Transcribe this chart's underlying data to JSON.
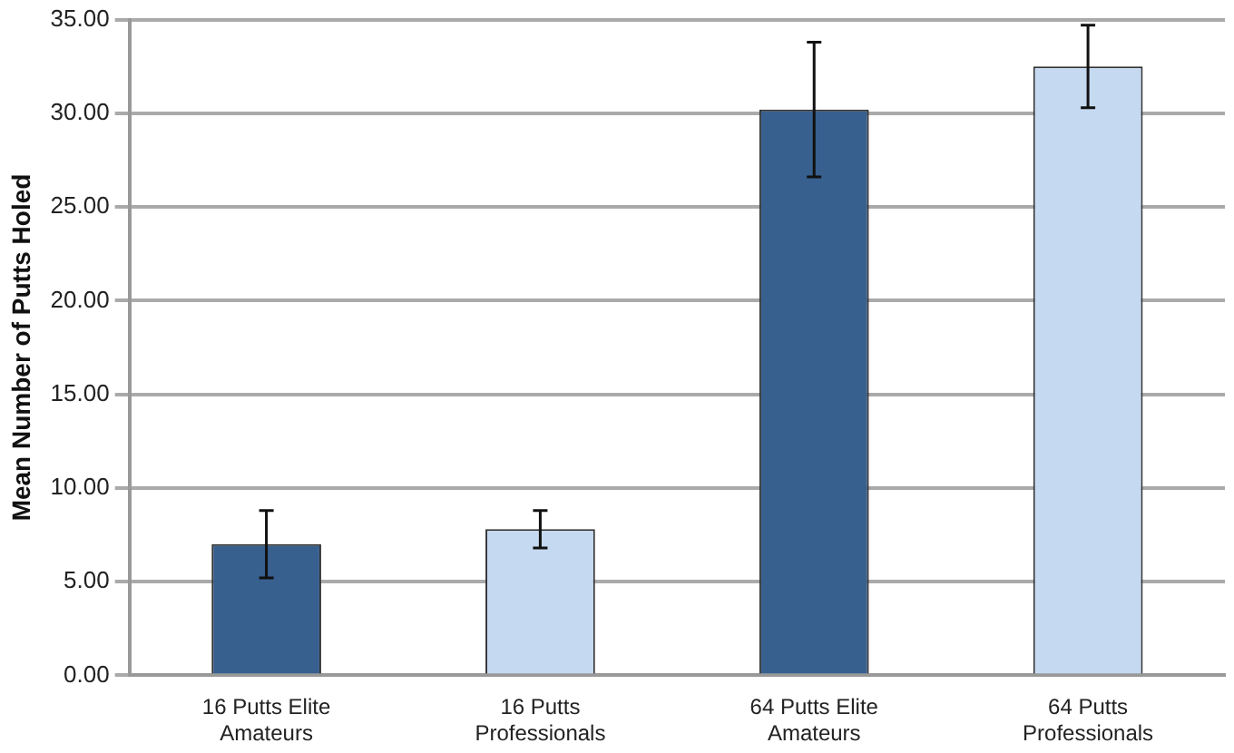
{
  "chart_data": {
    "type": "bar",
    "ylabel": "Mean Number of Putts Holed",
    "categories": [
      "16 Putts Elite Amateurs",
      "16 Putts Professionals",
      "64 Putts Elite Amateurs",
      "64 Putts Professionals"
    ],
    "values": [
      7.0,
      7.8,
      30.2,
      32.5
    ],
    "colors": [
      "#38608f",
      "#c5d9f1",
      "#38608f",
      "#c5d9f1"
    ],
    "errors": [
      1.8,
      1.0,
      3.6,
      2.2
    ],
    "ylim": [
      0,
      35
    ],
    "yticks": [
      {
        "value": 0,
        "label": "0.00"
      },
      {
        "value": 5,
        "label": "5.00"
      },
      {
        "value": 10,
        "label": "10.00"
      },
      {
        "value": 15,
        "label": "15.00"
      },
      {
        "value": 20,
        "label": "20.00"
      },
      {
        "value": 25,
        "label": "25.00"
      },
      {
        "value": 30,
        "label": "30.00"
      },
      {
        "value": 35,
        "label": "35.00"
      }
    ],
    "grid": "y",
    "legend": false
  }
}
